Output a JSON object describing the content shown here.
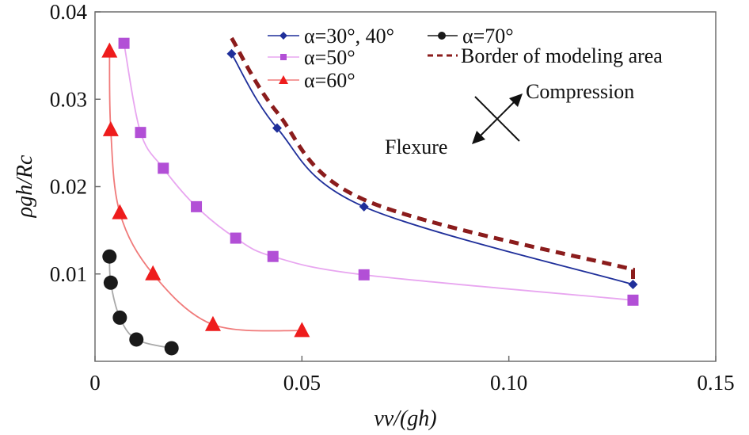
{
  "chart_data": {
    "type": "line",
    "title": "",
    "xlabel": "vv/(gh)",
    "ylabel": "ρgh/Rc",
    "xlim": [
      0,
      0.15
    ],
    "ylim": [
      0,
      0.04
    ],
    "xticks": [
      0,
      0.05,
      0.1,
      0.15
    ],
    "xtick_labels": [
      "0",
      "0.05",
      "0.10",
      "0.15"
    ],
    "yticks": [
      0.01,
      0.02,
      0.03,
      0.04
    ],
    "ytick_labels": [
      "0.01",
      "0.02",
      "0.03",
      "0.04"
    ],
    "grid": false,
    "legend_position": "top-right",
    "series": [
      {
        "name": "α=30°, 40°",
        "color": "#1f2f9a",
        "marker": "diamond",
        "x": [
          0.033,
          0.044,
          0.065,
          0.13
        ],
        "y": [
          0.0352,
          0.0267,
          0.0177,
          0.0088
        ]
      },
      {
        "name": "α=50°",
        "color": "#b24fd6",
        "line_color": "#e8a6f0",
        "marker": "square",
        "x": [
          0.007,
          0.011,
          0.0165,
          0.0245,
          0.034,
          0.043,
          0.065,
          0.13
        ],
        "y": [
          0.0364,
          0.0262,
          0.0221,
          0.0177,
          0.0141,
          0.012,
          0.0099,
          0.007
        ]
      },
      {
        "name": "α=60°",
        "color": "#ee1c1c",
        "line_color": "#f07a7a",
        "marker": "triangle",
        "x": [
          0.0035,
          0.0038,
          0.006,
          0.014,
          0.0285,
          0.05
        ],
        "y": [
          0.0355,
          0.0265,
          0.017,
          0.01,
          0.0042,
          0.0035
        ]
      },
      {
        "name": "α=70°",
        "color": "#1a1a1a",
        "line_color": "#a9a9a9",
        "marker": "circle",
        "x": [
          0.0035,
          0.0038,
          0.006,
          0.01,
          0.0185
        ],
        "y": [
          0.012,
          0.009,
          0.005,
          0.0025,
          0.0015
        ]
      },
      {
        "name": "Border of modeling area",
        "color": "#8b1c1c",
        "style": "dashed",
        "x": [
          0.033,
          0.044,
          0.065,
          0.13,
          0.13
        ],
        "y": [
          0.037,
          0.0285,
          0.0185,
          0.0105,
          0.0088
        ]
      }
    ],
    "annotations": {
      "compression": "Compression",
      "flexure": "Flexure"
    }
  }
}
